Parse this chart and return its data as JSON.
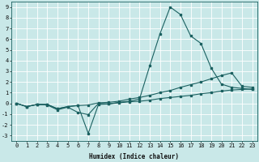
{
  "xlabel": "Humidex (Indice chaleur)",
  "background_color": "#c9e8e8",
  "grid_color": "#b0d8d8",
  "line_color": "#1a6060",
  "spine_color": "#1a6060",
  "xlim": [
    -0.5,
    23.5
  ],
  "ylim": [
    -3.5,
    9.5
  ],
  "xticks": [
    0,
    1,
    2,
    3,
    4,
    5,
    6,
    7,
    8,
    9,
    10,
    11,
    12,
    13,
    14,
    15,
    16,
    17,
    18,
    19,
    20,
    21,
    22,
    23
  ],
  "yticks": [
    -3,
    -2,
    -1,
    0,
    1,
    2,
    3,
    4,
    5,
    6,
    7,
    8,
    9
  ],
  "line1_x": [
    0,
    1,
    2,
    3,
    4,
    5,
    6,
    7,
    8,
    9,
    10,
    11,
    12,
    13,
    14,
    15,
    16,
    17,
    18,
    19,
    20,
    21,
    22,
    23
  ],
  "line1_y": [
    0.0,
    -0.3,
    -0.1,
    -0.1,
    -0.5,
    -0.3,
    -0.2,
    -2.8,
    -0.1,
    -0.05,
    0.05,
    0.15,
    0.2,
    0.3,
    0.45,
    0.55,
    0.65,
    0.75,
    0.9,
    1.0,
    1.15,
    1.25,
    1.3,
    1.35
  ],
  "line2_x": [
    0,
    1,
    2,
    3,
    4,
    5,
    6,
    7,
    8,
    9,
    10,
    11,
    12,
    13,
    14,
    15,
    16,
    17,
    18,
    19,
    20,
    21,
    22,
    23
  ],
  "line2_y": [
    0.0,
    -0.3,
    -0.1,
    -0.15,
    -0.6,
    -0.35,
    -0.85,
    -1.05,
    0.0,
    -0.05,
    0.1,
    0.2,
    0.4,
    3.5,
    6.5,
    9.0,
    8.3,
    6.3,
    5.6,
    3.3,
    1.8,
    1.5,
    1.4,
    1.3
  ],
  "line3_x": [
    0,
    1,
    2,
    3,
    4,
    5,
    6,
    7,
    8,
    9,
    10,
    11,
    12,
    13,
    14,
    15,
    16,
    17,
    18,
    19,
    20,
    21,
    22,
    23
  ],
  "line3_y": [
    0.0,
    -0.3,
    -0.1,
    -0.1,
    -0.5,
    -0.3,
    -0.2,
    -0.15,
    0.05,
    0.1,
    0.2,
    0.4,
    0.55,
    0.75,
    1.0,
    1.2,
    1.5,
    1.75,
    2.0,
    2.3,
    2.6,
    2.85,
    1.6,
    1.5
  ],
  "xlabel_fontsize": 5.5,
  "tick_fontsize": 5.0,
  "line_width": 0.8,
  "marker_size": 1.8
}
